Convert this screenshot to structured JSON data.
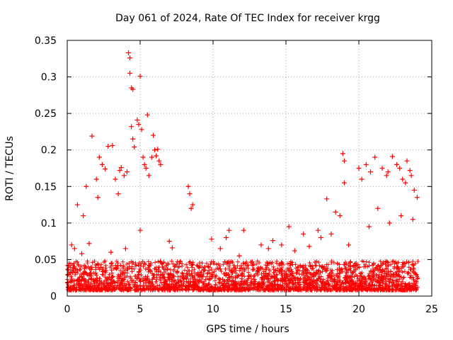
{
  "chart_data": {
    "type": "scatter",
    "title": "Day 061 of 2024, Rate Of TEC Index for receiver krgg",
    "xlabel": "GPS time / hours",
    "ylabel": "ROTI / TECUs",
    "xlim": [
      0,
      25
    ],
    "ylim": [
      0,
      0.35
    ],
    "xticks": [
      "0",
      "5",
      "10",
      "15",
      "20",
      "25"
    ],
    "yticks": [
      "0",
      "0.05",
      "0.1",
      "0.15",
      "0.2",
      "0.25",
      "0.3",
      "0.35"
    ],
    "grid": true,
    "marker": "plus",
    "color": "#ff0000",
    "series": [
      {
        "x": [
          4.2,
          4.3,
          4.3,
          4.4,
          4.5,
          4.4,
          4.5,
          4.6,
          5.0,
          5.5,
          4.8,
          4.9,
          5.1,
          1.7,
          2.8,
          3.1,
          2.2,
          2.4,
          2.6,
          5.9,
          6.0,
          6.2,
          6.1,
          6.3,
          3.6,
          3.7,
          0.7,
          1.1,
          1.3,
          2.0,
          2.1,
          3.3,
          3.5,
          3.9,
          4.1,
          5.2,
          5.3,
          5.4,
          5.6,
          5.8,
          6.4,
          8.3,
          8.4,
          8.6,
          8.5,
          12.1,
          17.8,
          18.7,
          18.9,
          19.0,
          19.0,
          20.0,
          20.2,
          20.5,
          20.8,
          21.1,
          21.6,
          21.9,
          22.0,
          22.3,
          22.6,
          22.8,
          23.0,
          23.2,
          23.3,
          23.5,
          23.6,
          23.8,
          24.0,
          9.9,
          10.9,
          11.1,
          14.1,
          15.2,
          16.2,
          17.4,
          18.4,
          0.3,
          0.5,
          1.0,
          1.5,
          3.0,
          4.0,
          5.0,
          7.0,
          7.2,
          10.5,
          11.8,
          13.3,
          13.8,
          14.7,
          15.6,
          16.6,
          17.2,
          18.1,
          19.3,
          20.7,
          21.3,
          22.1,
          22.9,
          23.7
        ],
        "y": [
          0.333,
          0.326,
          0.305,
          0.285,
          0.283,
          0.232,
          0.215,
          0.204,
          0.301,
          0.248,
          0.241,
          0.235,
          0.228,
          0.219,
          0.205,
          0.206,
          0.19,
          0.18,
          0.174,
          0.22,
          0.2,
          0.201,
          0.192,
          0.185,
          0.172,
          0.176,
          0.125,
          0.11,
          0.15,
          0.16,
          0.135,
          0.16,
          0.14,
          0.165,
          0.17,
          0.19,
          0.18,
          0.175,
          0.165,
          0.19,
          0.18,
          0.15,
          0.14,
          0.125,
          0.12,
          0.09,
          0.133,
          0.11,
          0.195,
          0.185,
          0.155,
          0.175,
          0.16,
          0.18,
          0.17,
          0.19,
          0.175,
          0.165,
          0.17,
          0.191,
          0.18,
          0.175,
          0.16,
          0.155,
          0.185,
          0.172,
          0.165,
          0.145,
          0.135,
          0.078,
          0.08,
          0.09,
          0.076,
          0.095,
          0.085,
          0.08,
          0.115,
          0.07,
          0.065,
          0.058,
          0.072,
          0.06,
          0.065,
          0.09,
          0.075,
          0.066,
          0.065,
          0.055,
          0.07,
          0.065,
          0.07,
          0.062,
          0.068,
          0.09,
          0.085,
          0.07,
          0.095,
          0.12,
          0.1,
          0.11,
          0.105
        ]
      }
    ]
  }
}
